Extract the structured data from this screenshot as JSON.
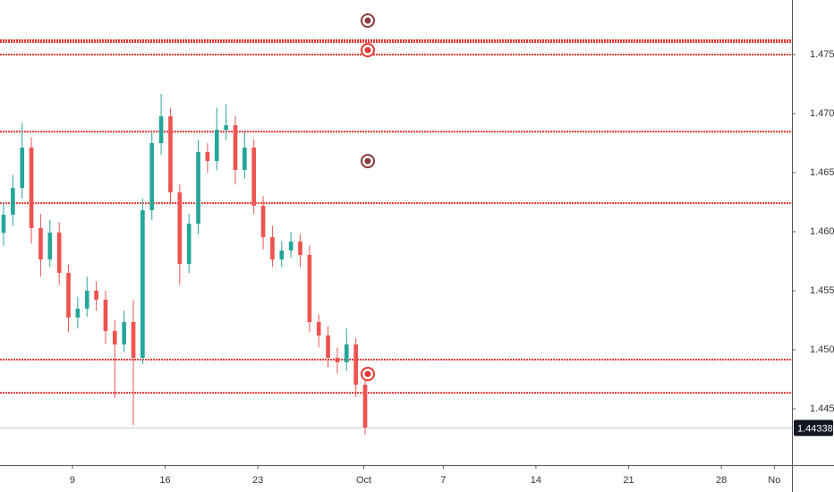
{
  "chart_data": {
    "type": "candlestick",
    "x": [
      3.8,
      4.5,
      5.2,
      5.9,
      6.6,
      7.3,
      8.0,
      8.7,
      9.4,
      10.1,
      10.8,
      11.5,
      12.2,
      12.9,
      13.6,
      14.3,
      15.0,
      15.7,
      16.4,
      17.1,
      17.8,
      18.5,
      19.2,
      19.9,
      20.6,
      21.3,
      22.0,
      22.7,
      23.4,
      24.1,
      24.8,
      25.5,
      26.2,
      26.9,
      27.6,
      28.3,
      29.0,
      29.7,
      30.4,
      31.1
    ],
    "open": [
      1.4599,
      1.46144,
      1.46371,
      1.46712,
      1.4603,
      1.45765,
      1.45992,
      1.45651,
      1.45273,
      1.45348,
      1.455,
      1.45424,
      1.45159,
      1.45045,
      1.45235,
      1.44932,
      1.46182,
      1.4675,
      1.46977,
      1.46333,
      1.45727,
      1.46068,
      1.46674,
      1.46598,
      1.46863,
      1.46901,
      1.46523,
      1.46712,
      1.4622,
      1.45954,
      1.45765,
      1.45841,
      1.45916,
      1.45803,
      1.45235,
      1.45121,
      1.44932,
      1.44894,
      1.45045,
      1.44704
    ],
    "high": [
      1.4625,
      1.4648,
      1.4692,
      1.468,
      1.4615,
      1.461,
      1.4608,
      1.4572,
      1.4545,
      1.4562,
      1.4558,
      1.455,
      1.4525,
      1.4533,
      1.4542,
      1.4628,
      1.4685,
      1.47167,
      1.4705,
      1.464,
      1.4615,
      1.4678,
      1.4675,
      1.4705,
      1.4708,
      1.4698,
      1.4685,
      1.4678,
      1.463,
      1.4605,
      1.4592,
      1.46,
      1.4598,
      1.4588,
      1.453,
      1.452,
      1.4502,
      1.4518,
      1.451,
      1.4475
    ],
    "low": [
      1.4588,
      1.4605,
      1.4628,
      1.459,
      1.4562,
      1.457,
      1.4555,
      1.4515,
      1.4518,
      1.4528,
      1.4533,
      1.4505,
      1.44591,
      1.4498,
      1.44363,
      1.4488,
      1.461,
      1.4665,
      1.4625,
      1.4555,
      1.4565,
      1.4598,
      1.465,
      1.4652,
      1.4678,
      1.464,
      1.4645,
      1.4615,
      1.4585,
      1.457,
      1.457,
      1.4578,
      1.457,
      1.4515,
      1.4502,
      1.4485,
      1.448,
      1.4482,
      1.446,
      1.4428
    ],
    "close": [
      1.46144,
      1.46371,
      1.46712,
      1.4603,
      1.45765,
      1.45992,
      1.45651,
      1.45273,
      1.45348,
      1.455,
      1.45424,
      1.45159,
      1.45045,
      1.45235,
      1.44932,
      1.46182,
      1.4675,
      1.46977,
      1.46333,
      1.45727,
      1.46068,
      1.46674,
      1.46598,
      1.46863,
      1.46901,
      1.46523,
      1.46712,
      1.4622,
      1.45954,
      1.45765,
      1.45841,
      1.45916,
      1.45803,
      1.45235,
      1.45121,
      1.44932,
      1.44894,
      1.45045,
      1.44704,
      1.44341
    ],
    "up_color": "#26a69a",
    "down_color": "#ef5350",
    "xlim": [
      3.53,
      63.33
    ],
    "xticks": [
      9,
      16,
      23,
      {
        "value": 31,
        "label": "Oct"
      },
      {
        "value": 37,
        "label": "7"
      },
      {
        "value": 44,
        "label": "14"
      },
      {
        "value": 51,
        "label": "21"
      },
      {
        "value": 58,
        "label": "28"
      },
      {
        "value": 62,
        "label": "No"
      }
    ],
    "ylim": [
      1.44023,
      1.47962
    ],
    "yticks": [
      {
        "value": 1.445,
        "label": "1.44500"
      },
      {
        "value": 1.45,
        "label": "1.45000"
      },
      {
        "value": 1.455,
        "label": "1.45500"
      },
      {
        "value": 1.46,
        "label": "1.46000"
      },
      {
        "value": 1.465,
        "label": "1.46500"
      },
      {
        "value": 1.47,
        "label": "1.47000"
      },
      {
        "value": 1.475,
        "label": "1.47500"
      }
    ],
    "levels": [
      1.47621,
      1.47606,
      1.475,
      1.46848,
      1.46242,
      1.44917,
      1.44636
    ],
    "level_color": "#e53935",
    "last_price": 1.44338,
    "markers": [
      {
        "x": 31.3,
        "y": 1.47788,
        "color": "#8d3b3b"
      },
      {
        "x": 31.3,
        "y": 1.47538,
        "color": "#e53935"
      },
      {
        "x": 31.3,
        "y": 1.46598,
        "color": "#8d3b3b"
      },
      {
        "x": 31.3,
        "y": 1.44795,
        "color": "#e53935"
      }
    ]
  }
}
